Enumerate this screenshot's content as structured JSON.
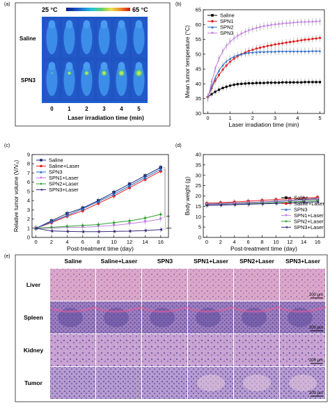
{
  "panel_labels": {
    "a": "(a)",
    "b": "(b)",
    "c": "(c)",
    "d": "(d)",
    "e": "(e)"
  },
  "panel_a": {
    "temp_low": "25 °C",
    "temp_high": "65 °C",
    "rows": [
      "Saline",
      "SPN3"
    ],
    "times": [
      "0",
      "1",
      "2",
      "3",
      "4",
      "5"
    ],
    "xlabel": "Laser irradiation time (min)",
    "colors": {
      "body_blue": "#1f5fd0",
      "hot_spot": "#e8e34a"
    }
  },
  "panel_e": {
    "columns": [
      "Saline",
      "Saline+Laser",
      "SPN3",
      "SPN1+Laser",
      "SPN2+Laser",
      "SPN3+Laser"
    ],
    "rows": [
      "Liver",
      "Spleen",
      "Kidney",
      "Tumor"
    ],
    "scale_bar": "200 μm"
  },
  "chart_data": [
    {
      "id": "b",
      "type": "line",
      "xlabel": "Laser irradiation time (min)",
      "ylabel": "Mean tumor temperature (°C)",
      "xlim": [
        -0.2,
        5.2
      ],
      "ylim": [
        30,
        65
      ],
      "xticks": [
        0,
        1,
        2,
        3,
        4,
        5
      ],
      "yticks": [
        30,
        35,
        40,
        45,
        50,
        55,
        60,
        65
      ],
      "legend": "top-left",
      "x": [
        0,
        0.17,
        0.33,
        0.5,
        0.67,
        0.83,
        1,
        1.17,
        1.33,
        1.5,
        1.67,
        1.83,
        2,
        2.17,
        2.33,
        2.5,
        2.67,
        2.83,
        3,
        3.17,
        3.33,
        3.5,
        3.67,
        3.83,
        4,
        4.17,
        4.33,
        4.5,
        4.67,
        4.83,
        5
      ],
      "series": [
        {
          "name": "Saline",
          "color": "#000000",
          "marker": "square",
          "values": [
            35.5,
            36.5,
            37.3,
            38.0,
            38.6,
            39.0,
            39.4,
            39.7,
            39.9,
            40.0,
            40.1,
            40.2,
            40.2,
            40.3,
            40.3,
            40.3,
            40.4,
            40.4,
            40.4,
            40.4,
            40.5,
            40.5,
            40.5,
            40.5,
            40.5,
            40.5,
            40.6,
            40.6,
            40.6,
            40.6,
            40.6
          ]
        },
        {
          "name": "SPN1",
          "color": "#e41a1c",
          "marker": "circle",
          "values": [
            35.5,
            38.5,
            41.0,
            43.0,
            44.8,
            46.2,
            47.5,
            48.5,
            49.3,
            50.0,
            50.6,
            51.1,
            51.5,
            51.9,
            52.2,
            52.5,
            52.8,
            53.0,
            53.3,
            53.5,
            53.7,
            53.9,
            54.1,
            54.3,
            54.5,
            54.7,
            54.9,
            55.0,
            55.2,
            55.3,
            55.5
          ]
        },
        {
          "name": "SPN2",
          "color": "#2a6cc9",
          "marker": "triangle",
          "values": [
            35.5,
            39.0,
            42.0,
            44.5,
            46.3,
            47.6,
            48.5,
            49.2,
            49.7,
            50.0,
            50.3,
            50.5,
            50.6,
            50.7,
            50.8,
            50.8,
            50.9,
            50.9,
            50.9,
            51.0,
            51.0,
            51.0,
            51.0,
            51.0,
            51.0,
            51.0,
            51.0,
            51.0,
            51.1,
            51.1,
            51.1
          ]
        },
        {
          "name": "SPN3",
          "color": "#c17ee0",
          "marker": "triangle-down",
          "values": [
            35.0,
            40.5,
            45.0,
            48.5,
            51.0,
            52.8,
            54.2,
            55.3,
            56.2,
            56.9,
            57.5,
            58.0,
            58.4,
            58.8,
            59.1,
            59.4,
            59.6,
            59.8,
            60.0,
            60.1,
            60.3,
            60.4,
            60.5,
            60.6,
            60.7,
            60.8,
            60.8,
            60.9,
            60.9,
            61.0,
            61.0
          ]
        }
      ]
    },
    {
      "id": "c",
      "type": "line",
      "xlabel": "Post-treatment time (day)",
      "ylabel": "Relative tumor volume (V/V₀)",
      "xlim": [
        -0.5,
        17
      ],
      "ylim": [
        0,
        9
      ],
      "xticks": [
        0,
        2,
        4,
        6,
        8,
        10,
        12,
        14,
        16
      ],
      "yticks": [
        0,
        1,
        2,
        3,
        4,
        5,
        6,
        7,
        8,
        9
      ],
      "legend": "top-left",
      "annotations": [
        "**",
        "***"
      ],
      "x": [
        0,
        2,
        4,
        6,
        8,
        10,
        12,
        14,
        16
      ],
      "series": [
        {
          "name": "Saline",
          "color": "#1a2a6c",
          "marker": "square",
          "values": [
            1.0,
            1.8,
            2.6,
            3.2,
            4.0,
            4.9,
            5.8,
            6.7,
            7.6
          ]
        },
        {
          "name": "Saline+Laser",
          "color": "#e41a1c",
          "marker": "circle",
          "values": [
            1.0,
            1.6,
            2.3,
            2.9,
            3.7,
            4.5,
            5.4,
            6.3,
            7.2
          ]
        },
        {
          "name": "SPN3",
          "color": "#2a6cc9",
          "marker": "triangle",
          "values": [
            1.0,
            1.7,
            2.4,
            3.1,
            3.9,
            4.7,
            5.6,
            6.5,
            7.4
          ]
        },
        {
          "name": "SPN1+Laser",
          "color": "#c17ee0",
          "marker": "triangle-down",
          "values": [
            1.0,
            1.0,
            1.1,
            1.1,
            1.2,
            1.3,
            1.5,
            1.7,
            2.0
          ]
        },
        {
          "name": "SPN2+Laser",
          "color": "#2ca02c",
          "marker": "diamond",
          "values": [
            1.0,
            1.1,
            1.2,
            1.3,
            1.4,
            1.6,
            1.8,
            2.1,
            2.5
          ]
        },
        {
          "name": "SPN3+Laser",
          "color": "#3a2a7a",
          "marker": "triangle-left",
          "values": [
            1.0,
            0.7,
            0.65,
            0.62,
            0.62,
            0.65,
            0.68,
            0.75,
            0.85
          ]
        }
      ]
    },
    {
      "id": "d",
      "type": "line",
      "xlabel": "Post-treatment time (day)",
      "ylabel": "Body weight (g)",
      "xlim": [
        -0.5,
        17
      ],
      "ylim": [
        0,
        40
      ],
      "xticks": [
        0,
        2,
        4,
        6,
        8,
        10,
        12,
        14,
        16
      ],
      "yticks": [
        0,
        5,
        10,
        15,
        20,
        25,
        30,
        35,
        40
      ],
      "legend": "center-right",
      "x": [
        0,
        2,
        4,
        6,
        8,
        10,
        12,
        14,
        16
      ],
      "series": [
        {
          "name": "Saline",
          "color": "#000000",
          "marker": "square",
          "values": [
            16.0,
            16.3,
            16.5,
            16.8,
            17.1,
            17.5,
            17.9,
            18.3,
            18.8
          ]
        },
        {
          "name": "Saline+Laser",
          "color": "#e41a1c",
          "marker": "circle",
          "values": [
            16.5,
            16.8,
            17.1,
            17.5,
            17.9,
            18.3,
            18.7,
            19.0,
            19.4
          ]
        },
        {
          "name": "SPN3",
          "color": "#2a6cc9",
          "marker": "triangle",
          "values": [
            16.0,
            16.2,
            16.4,
            16.7,
            17.0,
            17.3,
            17.7,
            18.0,
            18.5
          ]
        },
        {
          "name": "SPN1+Laser",
          "color": "#c17ee0",
          "marker": "triangle-down",
          "values": [
            15.8,
            16.0,
            16.3,
            16.6,
            17.0,
            17.4,
            17.8,
            18.1,
            18.4
          ]
        },
        {
          "name": "SPN2+Laser",
          "color": "#2ca02c",
          "marker": "diamond",
          "values": [
            15.5,
            15.7,
            15.9,
            16.2,
            16.5,
            16.8,
            17.1,
            17.4,
            17.8
          ]
        },
        {
          "name": "SPN3+Laser",
          "color": "#3a2a7a",
          "marker": "triangle-left",
          "values": [
            15.5,
            15.6,
            15.8,
            16.0,
            16.2,
            16.4,
            16.6,
            16.9,
            17.2
          ]
        }
      ]
    }
  ]
}
